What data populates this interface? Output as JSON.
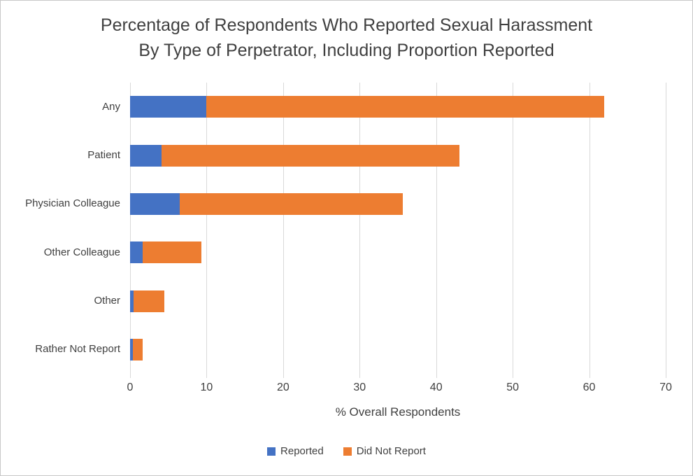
{
  "title": {
    "line1": "Percentage of Respondents Who Reported Sexual Harassment",
    "line2": "By Type of Perpetrator, Including Proportion Reported"
  },
  "chart_data": {
    "type": "bar",
    "orientation": "horizontal",
    "stacked": true,
    "title": "Percentage of Respondents Who Reported Sexual Harassment By Type of Perpetrator, Including Proportion Reported",
    "categories": [
      "Any",
      "Patient",
      "Physician Colleague",
      "Other Colleague",
      "Other",
      "Rather Not Report"
    ],
    "series": [
      {
        "name": "Reported",
        "color": "#4472C4",
        "values": [
          10,
          4.1,
          6.5,
          1.6,
          0.5,
          0.4
        ]
      },
      {
        "name": "Did Not Report",
        "color": "#ED7D31",
        "values": [
          52,
          38.9,
          29.1,
          7.7,
          4.0,
          1.2
        ]
      }
    ],
    "totals": [
      62,
      43,
      35.6,
      9.3,
      4.5,
      1.6
    ],
    "xlabel": "% Overall Respondents",
    "ylabel": "",
    "xlim": [
      0,
      70
    ],
    "xticks": [
      0,
      10,
      20,
      30,
      40,
      50,
      60,
      70
    ],
    "grid": true,
    "legend_position": "bottom",
    "gridline_color": "#D9D9D9",
    "text_color": "#404040"
  }
}
